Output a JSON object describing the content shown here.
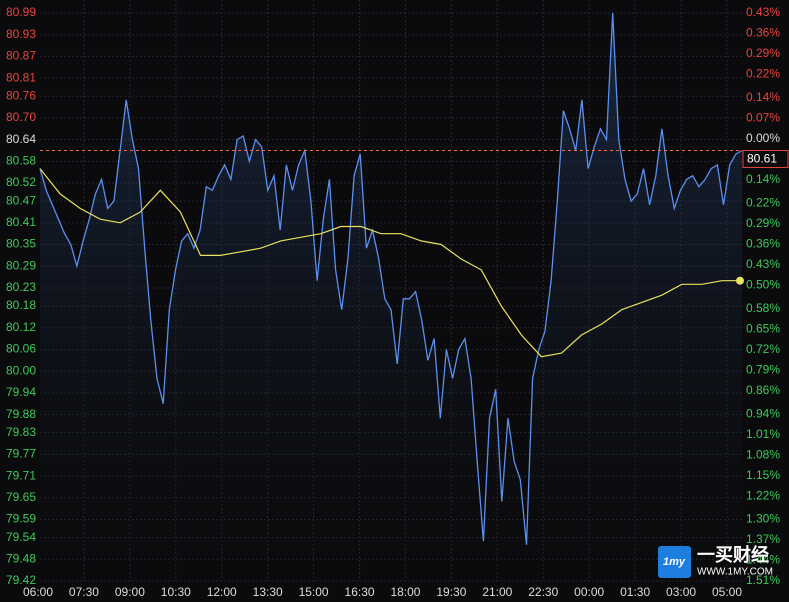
{
  "chart_data": {
    "type": "line",
    "ylim": [
      79.42,
      80.99
    ],
    "yticks": [
      80.99,
      80.93,
      80.87,
      80.81,
      80.76,
      {
        "value": 80.7,
        "label": "80.70"
      },
      80.64,
      80.58,
      80.52,
      80.47,
      80.41,
      80.35,
      80.29,
      80.23,
      80.18,
      80.12,
      80.06,
      {
        "value": 80,
        "label": "80.00"
      },
      79.94,
      79.88,
      79.83,
      79.77,
      79.71,
      79.65,
      79.59,
      79.54,
      79.48,
      79.42
    ],
    "y2lim": [
      -1.51,
      0.43
    ],
    "y2ticks": [
      {
        "value": 0.43,
        "label": "0.43%"
      },
      {
        "value": 0.36,
        "label": "0.36%"
      },
      {
        "value": 0.29,
        "label": "0.29%"
      },
      {
        "value": 0.22,
        "label": "0.22%"
      },
      {
        "value": 0.14,
        "label": "0.14%"
      },
      {
        "value": 0.07,
        "label": "0.07%"
      },
      {
        "value": 0,
        "label": "0.00%"
      },
      {
        "value": -0.14,
        "label": "0.14%"
      },
      {
        "value": -0.22,
        "label": "0.22%"
      },
      {
        "value": -0.29,
        "label": "0.29%"
      },
      {
        "value": -0.36,
        "label": "0.36%"
      },
      {
        "value": -0.43,
        "label": "0.43%"
      },
      {
        "value": -0.5,
        "label": "0.50%"
      },
      {
        "value": -0.58,
        "label": "0.58%"
      },
      {
        "value": -0.65,
        "label": "0.65%"
      },
      {
        "value": -0.72,
        "label": "0.72%"
      },
      {
        "value": -0.79,
        "label": "0.79%"
      },
      {
        "value": -0.86,
        "label": "0.86%"
      },
      {
        "value": -0.94,
        "label": "0.94%"
      },
      {
        "value": -1.01,
        "label": "1.01%"
      },
      {
        "value": -1.08,
        "label": "1.08%"
      },
      {
        "value": -1.15,
        "label": "1.15%"
      },
      {
        "value": -1.22,
        "label": "1.22%"
      },
      {
        "value": -1.3,
        "label": "1.30%"
      },
      {
        "value": -1.37,
        "label": "1.37%"
      },
      {
        "value": -1.44,
        "label": "1.44%"
      },
      {
        "value": -1.51,
        "label": "1.51%"
      }
    ],
    "xtick_labels": [
      "06:00",
      "07:30",
      "09:00",
      "10:30",
      "12:00",
      "13:30",
      "15:00",
      "16:30",
      "18:00",
      "19:30",
      "21:00",
      "22:30",
      "00:00",
      "01:30",
      "03:00",
      "05:00"
    ],
    "grid": true,
    "last_price": 80.61,
    "series": [
      {
        "color": "#5b8ff0",
        "values": [
          80.56,
          80.5,
          80.46,
          80.42,
          80.38,
          80.35,
          80.29,
          80.36,
          80.42,
          80.49,
          80.53,
          80.45,
          80.47,
          80.61,
          80.75,
          80.64,
          80.56,
          80.34,
          80.14,
          79.98,
          79.91,
          80.17,
          80.28,
          80.36,
          80.38,
          80.34,
          80.39,
          80.51,
          80.5,
          80.54,
          80.57,
          80.53,
          80.64,
          80.65,
          80.58,
          80.64,
          80.62,
          80.5,
          80.54,
          80.39,
          80.57,
          80.5,
          80.57,
          80.61,
          80.47,
          80.25,
          80.42,
          80.53,
          80.28,
          80.17,
          80.31,
          80.54,
          80.6,
          80.34,
          80.39,
          80.31,
          80.2,
          80.17,
          80.02,
          80.2,
          80.2,
          80.22,
          80.14,
          80.03,
          80.09,
          79.87,
          80.06,
          79.98,
          80.06,
          80.09,
          79.98,
          79.75,
          79.53,
          79.87,
          79.95,
          79.64,
          79.87,
          79.75,
          79.7,
          79.52,
          79.98,
          80.06,
          80.11,
          80.25,
          80.47,
          80.72,
          80.67,
          80.61,
          80.75,
          80.56,
          80.62,
          80.67,
          80.64,
          80.99,
          80.64,
          80.53,
          80.47,
          80.49,
          80.56,
          80.46,
          80.54,
          80.67,
          80.54,
          80.45,
          80.5,
          80.53,
          80.54,
          80.51,
          80.53,
          80.56,
          80.57,
          80.46,
          80.57,
          80.6,
          80.61
        ]
      },
      {
        "color": "#e8e25c",
        "values": [
          80.56,
          80.49,
          80.45,
          80.42,
          80.41,
          80.44,
          80.5,
          80.44,
          80.32,
          80.32,
          80.33,
          80.34,
          80.36,
          80.37,
          80.38,
          80.4,
          80.4,
          80.38,
          80.38,
          80.36,
          80.35,
          80.31,
          80.28,
          80.18,
          80.1,
          80.04,
          80.05,
          80.1,
          80.13,
          80.17,
          80.19,
          80.21,
          80.24,
          80.24,
          80.25,
          80.25
        ]
      }
    ],
    "watermark": {
      "logo": "1my",
      "name": "一买财经",
      "url": "WWW.1MY.COM"
    }
  }
}
